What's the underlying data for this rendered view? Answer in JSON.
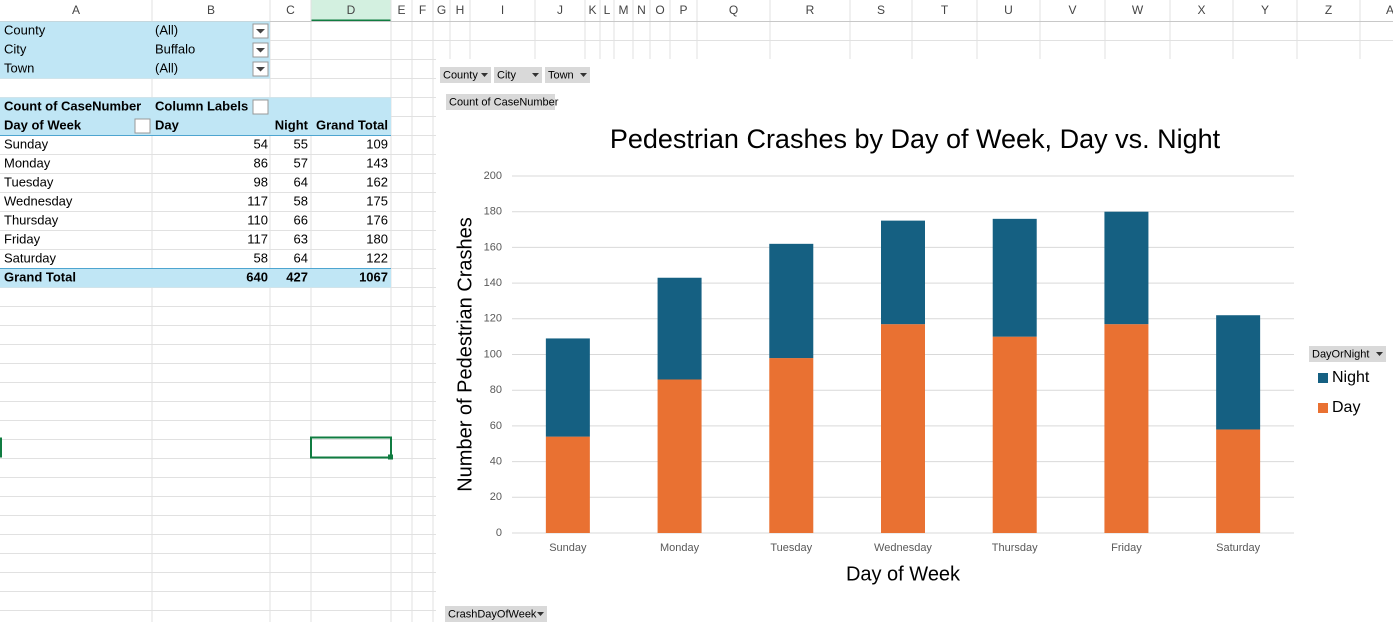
{
  "column_headers": [
    "A",
    "B",
    "C",
    "D",
    "E",
    "F",
    "G",
    "H",
    "I",
    "J",
    "K",
    "L",
    "M",
    "N",
    "O",
    "P",
    "Q",
    "R",
    "S",
    "T",
    "U",
    "V",
    "W",
    "X",
    "Y",
    "Z",
    "A"
  ],
  "filters": [
    {
      "field": "County",
      "value": "(All)"
    },
    {
      "field": "City",
      "value": "Buffalo"
    },
    {
      "field": "Town",
      "value": "(All)"
    }
  ],
  "pivot_table": {
    "value_field": "Count of CaseNumber",
    "column_labels": "Column Labels",
    "columns": [
      "Day of Week",
      "Day",
      "Night",
      "Grand Total"
    ],
    "rows": [
      [
        "Sunday",
        54,
        55,
        109
      ],
      [
        "Monday",
        86,
        57,
        143
      ],
      [
        "Tuesday",
        98,
        64,
        162
      ],
      [
        "Wednesday",
        117,
        58,
        175
      ],
      [
        "Thursday",
        110,
        66,
        176
      ],
      [
        "Friday",
        117,
        63,
        180
      ],
      [
        "Saturday",
        58,
        64,
        122
      ]
    ],
    "total": [
      "Grand Total",
      640,
      427,
      1067
    ]
  },
  "chart_buttons": {
    "filters": [
      "County",
      "City",
      "Town"
    ],
    "values": "Count of CaseNumber",
    "legend_field": "DayOrNight",
    "axis_field": "CrashDayOfWeek"
  },
  "chart_data": {
    "type": "stacked_bar",
    "title": "Pedestrian Crashes by Day of Week, Day vs. Night",
    "x_label": "Day of Week",
    "y_label": "Number of Pedestrian Crashes",
    "categories": [
      "Sunday",
      "Monday",
      "Tuesday",
      "Wednesday",
      "Thursday",
      "Friday",
      "Saturday"
    ],
    "series": [
      {
        "name": "Day",
        "color": "#e97132",
        "values": [
          54,
          86,
          98,
          117,
          110,
          117,
          58
        ]
      },
      {
        "name": "Night",
        "color": "#156082",
        "values": [
          55,
          57,
          64,
          58,
          66,
          63,
          64
        ]
      }
    ],
    "ylim": [
      0,
      200
    ],
    "yticks": [
      0,
      20,
      40,
      60,
      80,
      100,
      120,
      140,
      160,
      180,
      200
    ],
    "grid": true,
    "legend": "right"
  }
}
